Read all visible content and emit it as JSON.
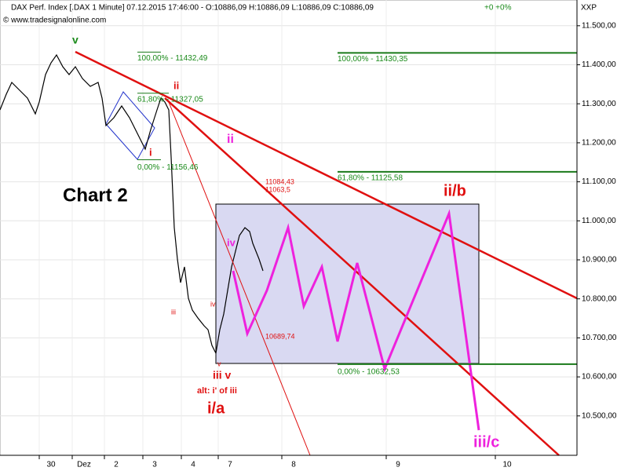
{
  "chart_data": {
    "type": "line",
    "title": "DAX Perf. Index [.DAX  1 Minute] 07.12.2015 17:46:00 - O:10886,09 H:10886,09 L:10886,09 C:10886,09",
    "change": "+0 +0%",
    "source": "© www.tradesignalonline.com",
    "axis_label": "XXP",
    "ylim": [
      10399,
      11566
    ],
    "yticks": [
      {
        "value": 10500,
        "label": "10.500,00"
      },
      {
        "value": 10600,
        "label": "10.600,00"
      },
      {
        "value": 10700,
        "label": "10.700,00"
      },
      {
        "value": 10800,
        "label": "10.800,00"
      },
      {
        "value": 10900,
        "label": "10.900,00"
      },
      {
        "value": 11000,
        "label": "11.000,00"
      },
      {
        "value": 11100,
        "label": "11.100,00"
      },
      {
        "value": 11200,
        "label": "11.200,00"
      },
      {
        "value": 11300,
        "label": "11.300,00"
      },
      {
        "value": 11400,
        "label": "11.400,00"
      },
      {
        "value": 11500,
        "label": "11.500,00"
      }
    ],
    "categories": [
      "30",
      "Dez",
      "2",
      "3",
      "4",
      "7",
      "8",
      "9",
      "10"
    ],
    "levels": [
      {
        "value": 11432.49,
        "label": "100,00% - 11432,49"
      },
      {
        "value": 11327.05,
        "label": "61,80% - 11327,05"
      },
      {
        "value": 11156.46,
        "label": "0,00% - 11156,46"
      },
      {
        "value": 11430.35,
        "label": "100,00% - 11430,35"
      },
      {
        "value": 11125.58,
        "label": "61,80% - 11125,58"
      },
      {
        "value": 10632.53,
        "label": "0,00% - 10632,53"
      }
    ],
    "annotations": [
      "Chart 2",
      "v",
      "ii",
      "i",
      "ii",
      "iii",
      "iv",
      "iv",
      "v",
      "iii v",
      "alt: i' of iii",
      "i/a",
      "ii/b",
      "iii/c",
      "11084,43",
      "11063,5",
      "10689,74"
    ]
  }
}
